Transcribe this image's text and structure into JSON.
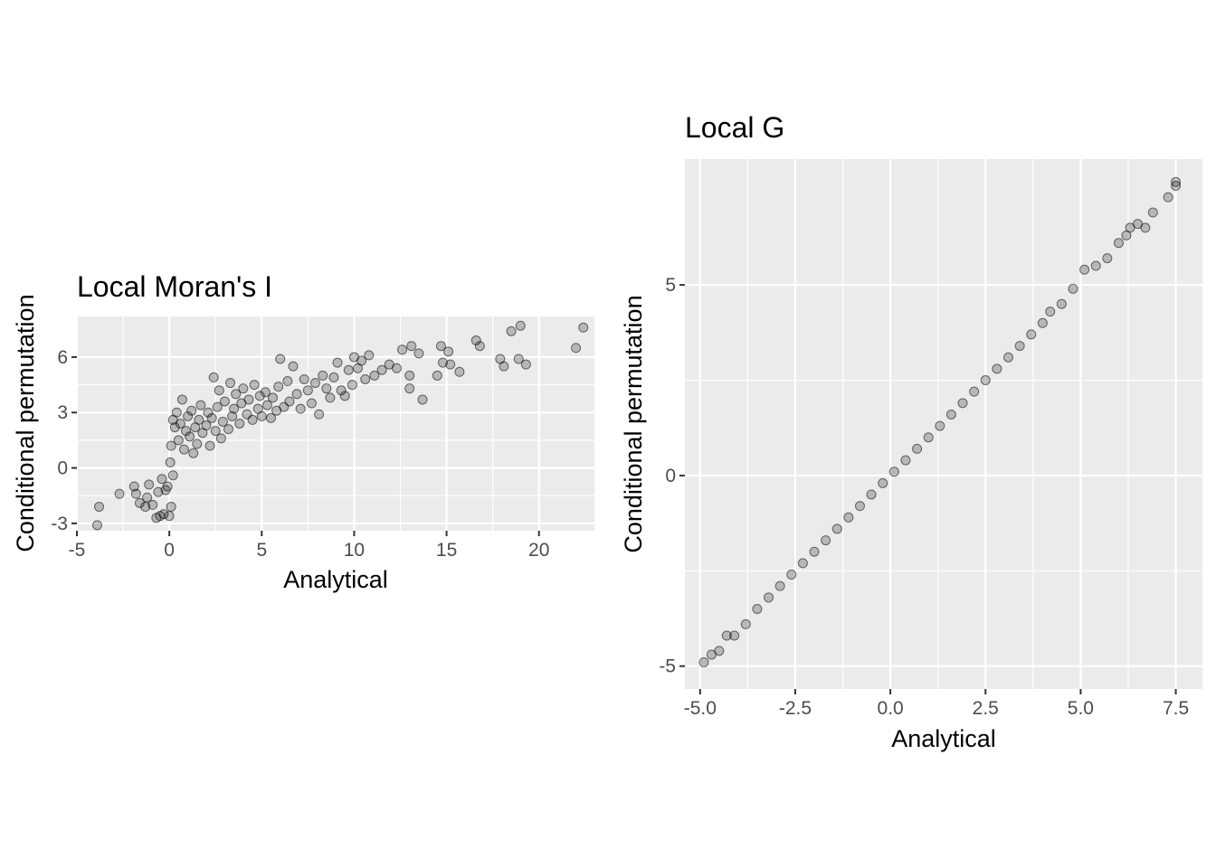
{
  "chart_data": [
    {
      "type": "scatter",
      "title": "Local Moran's I",
      "xlabel": "Analytical",
      "ylabel": "Conditional permutation",
      "xlim": [
        -5,
        23
      ],
      "ylim": [
        -3.4,
        8.2
      ],
      "xticks": [
        -5,
        0,
        5,
        10,
        15,
        20
      ],
      "xtick_labels": [
        "-5",
        "0",
        "5",
        "10",
        "15",
        "20"
      ],
      "yticks": [
        -3,
        0,
        3,
        6
      ],
      "ytick_labels": [
        "-3",
        "0",
        "3",
        "6"
      ],
      "grid": true,
      "point_color": "#000000",
      "point_alpha": 0.25,
      "points": [
        [
          -3.9,
          -3.1
        ],
        [
          -3.8,
          -2.1
        ],
        [
          -2.7,
          -1.4
        ],
        [
          -1.9,
          -1.0
        ],
        [
          -1.8,
          -1.4
        ],
        [
          -1.6,
          -1.9
        ],
        [
          -1.3,
          -2.1
        ],
        [
          -1.2,
          -1.6
        ],
        [
          -1.1,
          -0.9
        ],
        [
          -0.9,
          -2.0
        ],
        [
          -0.7,
          -2.7
        ],
        [
          -0.6,
          -1.3
        ],
        [
          -0.5,
          -2.6
        ],
        [
          -0.4,
          -0.6
        ],
        [
          -0.3,
          -2.5
        ],
        [
          -0.2,
          -1.2
        ],
        [
          0.0,
          -2.6
        ],
        [
          0.1,
          -2.1
        ],
        [
          0.2,
          -0.4
        ],
        [
          -0.1,
          -1.0
        ],
        [
          0.05,
          0.3
        ],
        [
          0.1,
          1.2
        ],
        [
          0.2,
          2.6
        ],
        [
          0.3,
          2.2
        ],
        [
          0.4,
          3.0
        ],
        [
          0.5,
          1.5
        ],
        [
          0.6,
          2.4
        ],
        [
          0.7,
          3.7
        ],
        [
          0.8,
          1.0
        ],
        [
          0.9,
          2.0
        ],
        [
          1.0,
          2.8
        ],
        [
          1.1,
          1.7
        ],
        [
          1.2,
          3.1
        ],
        [
          1.3,
          0.8
        ],
        [
          1.4,
          2.2
        ],
        [
          1.5,
          1.3
        ],
        [
          1.6,
          2.6
        ],
        [
          1.7,
          3.4
        ],
        [
          1.8,
          1.9
        ],
        [
          2.0,
          2.3
        ],
        [
          2.1,
          3.0
        ],
        [
          2.2,
          1.2
        ],
        [
          2.3,
          2.7
        ],
        [
          2.4,
          4.9
        ],
        [
          2.5,
          2.0
        ],
        [
          2.6,
          3.3
        ],
        [
          2.7,
          4.2
        ],
        [
          2.8,
          1.6
        ],
        [
          2.9,
          2.5
        ],
        [
          3.0,
          3.6
        ],
        [
          3.2,
          2.1
        ],
        [
          3.3,
          4.6
        ],
        [
          3.4,
          2.8
        ],
        [
          3.5,
          3.2
        ],
        [
          3.6,
          4.0
        ],
        [
          3.8,
          2.4
        ],
        [
          3.9,
          3.5
        ],
        [
          4.0,
          4.3
        ],
        [
          4.2,
          2.9
        ],
        [
          4.3,
          3.7
        ],
        [
          4.5,
          2.6
        ],
        [
          4.6,
          4.5
        ],
        [
          4.8,
          3.2
        ],
        [
          4.9,
          3.9
        ],
        [
          5.0,
          2.8
        ],
        [
          5.2,
          4.1
        ],
        [
          5.3,
          3.4
        ],
        [
          5.5,
          2.7
        ],
        [
          5.6,
          3.8
        ],
        [
          5.8,
          3.1
        ],
        [
          5.9,
          4.4
        ],
        [
          6.0,
          5.9
        ],
        [
          6.2,
          3.3
        ],
        [
          6.4,
          4.7
        ],
        [
          6.5,
          3.6
        ],
        [
          6.7,
          5.5
        ],
        [
          6.9,
          4.0
        ],
        [
          7.1,
          3.2
        ],
        [
          7.3,
          4.8
        ],
        [
          7.5,
          4.2
        ],
        [
          7.7,
          3.5
        ],
        [
          7.9,
          4.6
        ],
        [
          8.1,
          2.9
        ],
        [
          8.3,
          5.0
        ],
        [
          8.5,
          4.3
        ],
        [
          8.7,
          3.8
        ],
        [
          8.9,
          4.9
        ],
        [
          9.1,
          5.7
        ],
        [
          9.3,
          4.2
        ],
        [
          9.5,
          3.9
        ],
        [
          9.7,
          5.3
        ],
        [
          9.9,
          4.5
        ],
        [
          10.0,
          6.0
        ],
        [
          10.2,
          5.4
        ],
        [
          10.4,
          5.8
        ],
        [
          10.6,
          4.8
        ],
        [
          10.8,
          6.1
        ],
        [
          11.1,
          5.0
        ],
        [
          11.5,
          5.3
        ],
        [
          11.9,
          5.6
        ],
        [
          12.3,
          5.4
        ],
        [
          12.6,
          6.4
        ],
        [
          13.0,
          4.3
        ],
        [
          13.0,
          5.0
        ],
        [
          13.1,
          6.6
        ],
        [
          13.5,
          6.2
        ],
        [
          13.7,
          3.7
        ],
        [
          14.5,
          5.0
        ],
        [
          14.7,
          6.6
        ],
        [
          14.8,
          5.7
        ],
        [
          15.1,
          6.3
        ],
        [
          15.2,
          5.6
        ],
        [
          15.7,
          5.2
        ],
        [
          16.6,
          6.9
        ],
        [
          16.8,
          6.6
        ],
        [
          17.9,
          5.9
        ],
        [
          18.1,
          5.5
        ],
        [
          18.5,
          7.4
        ],
        [
          18.9,
          5.9
        ],
        [
          19.0,
          7.7
        ],
        [
          19.3,
          5.6
        ],
        [
          22.0,
          6.5
        ],
        [
          22.4,
          7.6
        ]
      ]
    },
    {
      "type": "scatter",
      "title": "Local G",
      "xlabel": "Analytical",
      "ylabel": "Conditional permutation",
      "xlim": [
        -5.4,
        8.2
      ],
      "ylim": [
        -5.6,
        8.3
      ],
      "xticks": [
        -5.0,
        -2.5,
        0.0,
        2.5,
        5.0,
        7.5
      ],
      "xtick_labels": [
        "-5.0",
        "-2.5",
        "0.0",
        "2.5",
        "5.0",
        "7.5"
      ],
      "yticks": [
        -5,
        0,
        5
      ],
      "ytick_labels": [
        "-5",
        "0",
        "5"
      ],
      "grid": true,
      "point_color": "#000000",
      "point_alpha": 0.25,
      "points": [
        [
          -4.9,
          -4.9
        ],
        [
          -4.7,
          -4.7
        ],
        [
          -4.5,
          -4.6
        ],
        [
          -4.3,
          -4.2
        ],
        [
          -4.1,
          -4.2
        ],
        [
          -3.8,
          -3.9
        ],
        [
          -3.5,
          -3.5
        ],
        [
          -3.2,
          -3.2
        ],
        [
          -2.9,
          -2.9
        ],
        [
          -2.6,
          -2.6
        ],
        [
          -2.3,
          -2.3
        ],
        [
          -2.0,
          -2.0
        ],
        [
          -1.7,
          -1.7
        ],
        [
          -1.4,
          -1.4
        ],
        [
          -1.1,
          -1.1
        ],
        [
          -0.8,
          -0.8
        ],
        [
          -0.5,
          -0.5
        ],
        [
          -0.2,
          -0.2
        ],
        [
          0.1,
          0.1
        ],
        [
          0.4,
          0.4
        ],
        [
          0.7,
          0.7
        ],
        [
          1.0,
          1.0
        ],
        [
          1.3,
          1.3
        ],
        [
          1.6,
          1.6
        ],
        [
          1.9,
          1.9
        ],
        [
          2.2,
          2.2
        ],
        [
          2.5,
          2.5
        ],
        [
          2.8,
          2.8
        ],
        [
          3.1,
          3.1
        ],
        [
          3.4,
          3.4
        ],
        [
          3.7,
          3.7
        ],
        [
          4.0,
          4.0
        ],
        [
          4.2,
          4.3
        ],
        [
          4.5,
          4.5
        ],
        [
          4.8,
          4.9
        ],
        [
          5.1,
          5.4
        ],
        [
          5.4,
          5.5
        ],
        [
          5.7,
          5.7
        ],
        [
          6.0,
          6.1
        ],
        [
          6.2,
          6.3
        ],
        [
          6.3,
          6.5
        ],
        [
          6.5,
          6.6
        ],
        [
          6.7,
          6.5
        ],
        [
          6.9,
          6.9
        ],
        [
          7.3,
          7.3
        ],
        [
          7.5,
          7.6
        ],
        [
          7.5,
          7.7
        ]
      ]
    }
  ]
}
